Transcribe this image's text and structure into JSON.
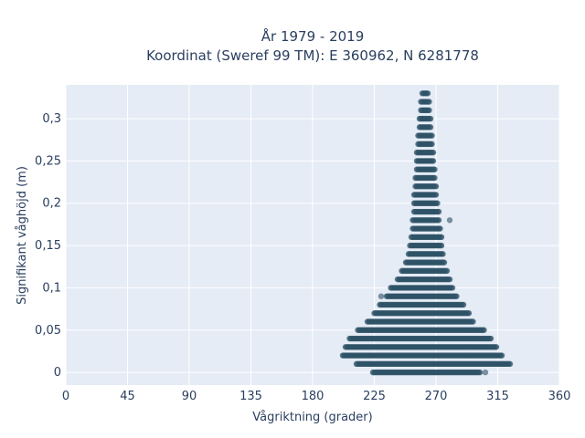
{
  "chart_data": {
    "type": "scatter",
    "title_line1": "År 1979 - 2019",
    "title_line2": "Koordinat (Sweref 99 TM): E 360962, N 6281778",
    "xlabel": "Vågriktning (grader)",
    "ylabel": "Signifikant våghöjd (m)",
    "xlim": [
      0,
      360
    ],
    "ylim": [
      -0.015,
      0.34
    ],
    "x_ticks": [
      0,
      45,
      90,
      135,
      180,
      225,
      270,
      315,
      360
    ],
    "x_tick_labels": [
      "0",
      "45",
      "90",
      "135",
      "180",
      "225",
      "270",
      "315",
      "360"
    ],
    "y_ticks": [
      0,
      0.05,
      0.1,
      0.15,
      0.2,
      0.25,
      0.3
    ],
    "y_tick_labels": [
      "0",
      "0,05",
      "0,1",
      "0,15",
      "0,2",
      "0,25",
      "0,3"
    ],
    "grid": true,
    "marker_color": "#2e5266",
    "plot_bg": "#e5ecf6",
    "height_step": 0.01,
    "direction_step": 1,
    "envelope": [
      {
        "y": 0.0,
        "x_min": 224,
        "x_max": 302
      },
      {
        "y": 0.01,
        "x_min": 212,
        "x_max": 324
      },
      {
        "y": 0.02,
        "x_min": 202,
        "x_max": 318
      },
      {
        "y": 0.03,
        "x_min": 204,
        "x_max": 314
      },
      {
        "y": 0.04,
        "x_min": 207,
        "x_max": 310
      },
      {
        "y": 0.05,
        "x_min": 213,
        "x_max": 305
      },
      {
        "y": 0.06,
        "x_min": 220,
        "x_max": 297
      },
      {
        "y": 0.07,
        "x_min": 225,
        "x_max": 294
      },
      {
        "y": 0.08,
        "x_min": 229,
        "x_max": 290
      },
      {
        "y": 0.09,
        "x_min": 234,
        "x_max": 285
      },
      {
        "y": 0.1,
        "x_min": 237,
        "x_max": 282
      },
      {
        "y": 0.11,
        "x_min": 242,
        "x_max": 280
      },
      {
        "y": 0.12,
        "x_min": 245,
        "x_max": 278
      },
      {
        "y": 0.13,
        "x_min": 248,
        "x_max": 276
      },
      {
        "y": 0.14,
        "x_min": 250,
        "x_max": 275
      },
      {
        "y": 0.15,
        "x_min": 251,
        "x_max": 274
      },
      {
        "y": 0.16,
        "x_min": 252,
        "x_max": 274
      },
      {
        "y": 0.17,
        "x_min": 253,
        "x_max": 273
      },
      {
        "y": 0.18,
        "x_min": 253,
        "x_max": 272
      },
      {
        "y": 0.19,
        "x_min": 254,
        "x_max": 272
      },
      {
        "y": 0.2,
        "x_min": 254,
        "x_max": 271
      },
      {
        "y": 0.21,
        "x_min": 254,
        "x_max": 270
      },
      {
        "y": 0.22,
        "x_min": 255,
        "x_max": 270
      },
      {
        "y": 0.23,
        "x_min": 255,
        "x_max": 269
      },
      {
        "y": 0.24,
        "x_min": 256,
        "x_max": 269
      },
      {
        "y": 0.25,
        "x_min": 256,
        "x_max": 268
      },
      {
        "y": 0.26,
        "x_min": 256,
        "x_max": 268
      },
      {
        "y": 0.27,
        "x_min": 257,
        "x_max": 267
      },
      {
        "y": 0.28,
        "x_min": 257,
        "x_max": 267
      },
      {
        "y": 0.29,
        "x_min": 258,
        "x_max": 266
      },
      {
        "y": 0.3,
        "x_min": 258,
        "x_max": 266
      },
      {
        "y": 0.31,
        "x_min": 259,
        "x_max": 265
      },
      {
        "y": 0.32,
        "x_min": 259,
        "x_max": 265
      },
      {
        "y": 0.33,
        "x_min": 260,
        "x_max": 264
      }
    ],
    "outliers": [
      {
        "x": 230,
        "y": 0.09
      },
      {
        "x": 306,
        "y": 0.0
      },
      {
        "x": 280,
        "y": 0.18
      }
    ]
  }
}
